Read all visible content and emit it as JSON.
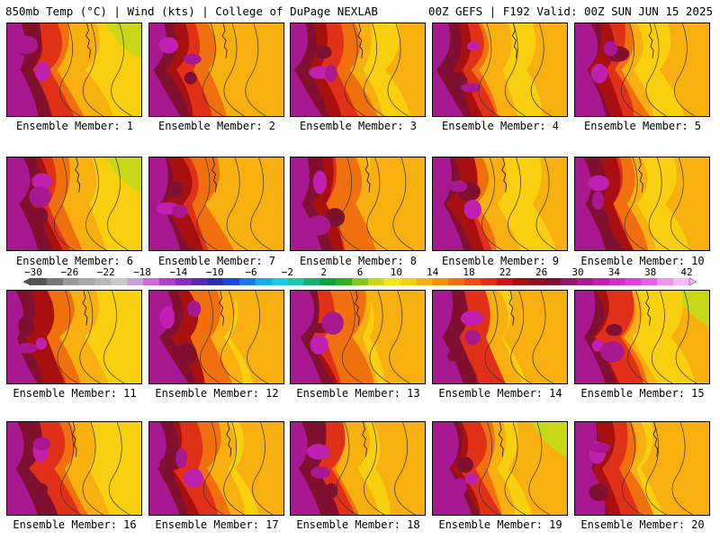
{
  "header": {
    "left_title": "850mb Temp (°C) | Wind (kts) | College of DuPage NEXLAB",
    "right_title": "00Z GEFS | F192 Valid: 00Z SUN JUN 15 2025"
  },
  "panels": [
    {
      "label": "Ensemble Member: 1"
    },
    {
      "label": "Ensemble Member: 2"
    },
    {
      "label": "Ensemble Member: 3"
    },
    {
      "label": "Ensemble Member: 4"
    },
    {
      "label": "Ensemble Member: 5"
    },
    {
      "label": "Ensemble Member: 6"
    },
    {
      "label": "Ensemble Member: 7"
    },
    {
      "label": "Ensemble Member: 8"
    },
    {
      "label": "Ensemble Member: 9"
    },
    {
      "label": "Ensemble Member: 10"
    },
    {
      "label": "Ensemble Member: 11"
    },
    {
      "label": "Ensemble Member: 12"
    },
    {
      "label": "Ensemble Member: 13"
    },
    {
      "label": "Ensemble Member: 14"
    },
    {
      "label": "Ensemble Member: 15"
    },
    {
      "label": "Ensemble Member: 16"
    },
    {
      "label": "Ensemble Member: 17"
    },
    {
      "label": "Ensemble Member: 18"
    },
    {
      "label": "Ensemble Member: 19"
    },
    {
      "label": "Ensemble Member: 20"
    }
  ],
  "colorbar": {
    "labels": [
      "−30",
      "−26",
      "−22",
      "−18",
      "−14",
      "−10",
      "−6",
      "−2",
      "2",
      "6",
      "10",
      "14",
      "18",
      "22",
      "26",
      "30",
      "34",
      "38",
      "42"
    ],
    "colors": [
      "#555555",
      "#777777",
      "#999999",
      "#aaaaaa",
      "#b8b8b8",
      "#c9c9c9",
      "#c7a2d8",
      "#d06ad8",
      "#b040c8",
      "#8a2cc0",
      "#5a2ab0",
      "#2c2cb0",
      "#1c48d8",
      "#1c78e8",
      "#1ca8f0",
      "#20c8e8",
      "#1cc8a8",
      "#18b070",
      "#10a040",
      "#30b020",
      "#80c820",
      "#c8d818",
      "#f0e818",
      "#f8d010",
      "#f8b010",
      "#f89010",
      "#f07010",
      "#e85018",
      "#e03018",
      "#c81818",
      "#a81010",
      "#901020",
      "#801030",
      "#901868",
      "#a81890",
      "#c020b0",
      "#d030c8",
      "#e040e0",
      "#e860e8",
      "#f090f0",
      "#f8b8f8"
    ]
  }
}
